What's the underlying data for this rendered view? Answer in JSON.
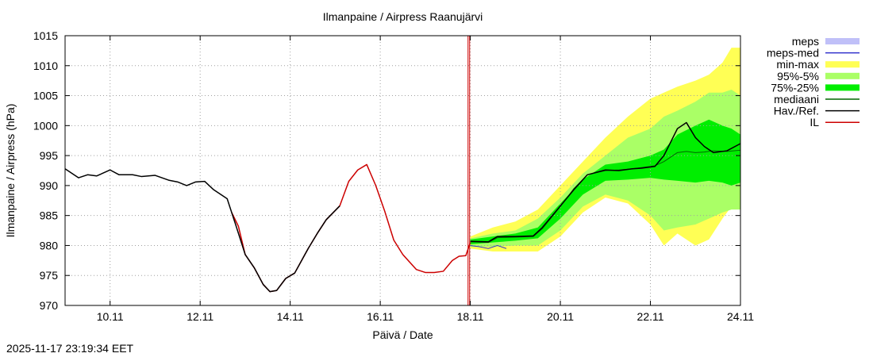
{
  "chart_data": {
    "type": "line",
    "title": "Ilmanpaine / Airpress Raanujärvi",
    "xlabel": "Päivä / Date",
    "ylabel": "Ilmanpaine / Airpress (hPa)",
    "x_unit": "days since 09.11 00:00",
    "xlim": [
      0.0,
      15.0
    ],
    "ylim": [
      970,
      1015
    ],
    "yticks": [
      970,
      975,
      980,
      985,
      990,
      995,
      1000,
      1005,
      1010,
      1015
    ],
    "xticks": [
      {
        "x": 1,
        "label": "10.11"
      },
      {
        "x": 3,
        "label": "12.11"
      },
      {
        "x": 5,
        "label": "14.11"
      },
      {
        "x": 7,
        "label": "16.11"
      },
      {
        "x": 9,
        "label": "18.11"
      },
      {
        "x": 11,
        "label": "20.11"
      },
      {
        "x": 13,
        "label": "22.11"
      },
      {
        "x": 15,
        "label": "24.11"
      }
    ],
    "forecast_start_x": 8.95,
    "legend": [
      {
        "key": "meps",
        "label": "meps",
        "color": "#c0c0f8",
        "style": "band"
      },
      {
        "key": "meps_med",
        "label": "meps-med",
        "color": "#3333cc",
        "style": "line"
      },
      {
        "key": "minmax",
        "label": "min-max",
        "color": "#ffff55",
        "style": "band"
      },
      {
        "key": "p95_5",
        "label": "95%-5%",
        "color": "#aaff66",
        "style": "band"
      },
      {
        "key": "p75_25",
        "label": "75%-25%",
        "color": "#00ee00",
        "style": "band"
      },
      {
        "key": "median",
        "label": "mediaani",
        "color": "#006600",
        "style": "line"
      },
      {
        "key": "observed",
        "label": "Hav./Ref.",
        "color": "#000000",
        "style": "line"
      },
      {
        "key": "il",
        "label": "IL",
        "color": "#cc0000",
        "style": "line"
      }
    ],
    "series": {
      "observed": {
        "name": "Hav./Ref.",
        "x": [
          0.0,
          0.3,
          0.5,
          0.7,
          1.0,
          1.2,
          1.5,
          1.7,
          2.0,
          2.3,
          2.5,
          2.7,
          2.9,
          3.1,
          3.3,
          3.6,
          3.8,
          4.0,
          4.2,
          4.4,
          4.55,
          4.7,
          4.9,
          5.1,
          5.4,
          5.6,
          5.8,
          6.1
        ],
        "y": [
          992.8,
          991.3,
          991.8,
          991.6,
          992.6,
          991.8,
          991.8,
          991.5,
          991.7,
          990.9,
          990.6,
          990.0,
          990.6,
          990.7,
          989.3,
          987.8,
          983.2,
          978.5,
          976.3,
          973.5,
          972.3,
          972.5,
          974.5,
          975.4,
          979.5,
          982.0,
          984.3,
          986.6
        ]
      },
      "il": {
        "name": "IL",
        "x": [
          3.7,
          3.85,
          4.0,
          4.2,
          4.4,
          4.55,
          4.7,
          4.9,
          5.1,
          5.4,
          5.6,
          5.8,
          6.1,
          6.3,
          6.5,
          6.7,
          6.9,
          7.1,
          7.3,
          7.5,
          7.8,
          8.0,
          8.2,
          8.4,
          8.6,
          8.75,
          8.9,
          9.0
        ],
        "y": [
          985.5,
          983.2,
          978.5,
          976.3,
          973.5,
          972.3,
          972.5,
          974.5,
          975.4,
          979.5,
          982.0,
          984.3,
          986.6,
          990.7,
          992.6,
          993.5,
          990.0,
          985.7,
          980.9,
          978.5,
          976.0,
          975.5,
          975.5,
          975.7,
          977.5,
          978.2,
          978.3,
          980.5
        ]
      },
      "hav_forecast": {
        "name": "Hav./Ref.",
        "x": [
          9.0,
          9.4,
          9.6,
          10.0,
          10.4,
          10.6,
          11.0,
          11.3,
          11.6,
          12.0,
          12.3,
          12.6,
          12.8,
          13.1,
          13.3,
          13.6,
          13.8,
          14.0,
          14.2,
          14.4,
          14.7,
          15.0
        ],
        "y": [
          980.7,
          980.6,
          981.5,
          981.5,
          981.6,
          983.0,
          986.6,
          989.3,
          991.8,
          992.6,
          992.5,
          992.8,
          992.9,
          993.2,
          995.0,
          999.5,
          1000.5,
          998.0,
          996.5,
          995.5,
          995.8,
          997.0
        ]
      },
      "median": {
        "name": "mediaani",
        "x": [
          9.0,
          9.4,
          9.6,
          10.0,
          10.4,
          10.6,
          11.0,
          11.3,
          11.6,
          12.0,
          12.3,
          12.6,
          12.8,
          13.1,
          13.3,
          13.6,
          13.8,
          14.0,
          14.2,
          14.4,
          14.7,
          15.0
        ],
        "y": [
          980.6,
          980.5,
          981.3,
          981.4,
          981.5,
          982.8,
          986.5,
          989.5,
          991.8,
          992.5,
          992.6,
          992.8,
          993.0,
          993.3,
          994.0,
          995.5,
          995.7,
          995.5,
          995.6,
          995.8,
          995.7,
          995.9
        ]
      },
      "meps_med": {
        "name": "meps-med",
        "x": [
          9.0,
          9.2,
          9.4,
          9.6,
          9.8
        ],
        "y": [
          980.0,
          979.8,
          979.5,
          980.0,
          979.5
        ]
      },
      "band_minmax": {
        "name": "min-max",
        "x": [
          9.0,
          9.5,
          10.0,
          10.5,
          11.0,
          11.5,
          12.0,
          12.5,
          13.0,
          13.3,
          13.6,
          14.0,
          14.3,
          14.6,
          14.8,
          15.0
        ],
        "lo": [
          979.5,
          979.0,
          979.0,
          979.0,
          981.5,
          985.5,
          988.0,
          987.0,
          983.5,
          980.0,
          982.0,
          980.0,
          981.0,
          984.5,
          986.5,
          987.0
        ],
        "hi": [
          981.5,
          983.0,
          984.0,
          986.0,
          990.0,
          994.0,
          998.0,
          1001.5,
          1004.5,
          1005.5,
          1006.5,
          1007.5,
          1008.5,
          1010.5,
          1013.0,
          1013.0
        ]
      },
      "band_p95_5": {
        "name": "95%-5%",
        "x": [
          9.0,
          9.5,
          10.0,
          10.5,
          11.0,
          11.5,
          12.0,
          12.5,
          13.0,
          13.3,
          13.6,
          14.0,
          14.3,
          14.6,
          14.8,
          15.0
        ],
        "lo": [
          979.8,
          979.8,
          980.0,
          980.0,
          982.5,
          986.5,
          988.5,
          987.5,
          985.0,
          982.5,
          983.0,
          983.5,
          984.5,
          985.5,
          986.0,
          986.0
        ],
        "hi": [
          981.2,
          982.0,
          982.5,
          984.5,
          988.0,
          992.0,
          995.0,
          998.0,
          999.5,
          1001.5,
          1002.5,
          1004.0,
          1005.5,
          1005.5,
          1006.0,
          1005.0
        ]
      },
      "band_p75_25": {
        "name": "75%-25%",
        "x": [
          9.0,
          9.5,
          10.0,
          10.5,
          11.0,
          11.5,
          12.0,
          12.5,
          13.0,
          13.3,
          13.6,
          14.0,
          14.3,
          14.6,
          14.8,
          15.0
        ],
        "lo": [
          980.2,
          980.5,
          980.8,
          981.2,
          984.5,
          988.5,
          990.8,
          991.0,
          991.3,
          991.0,
          990.8,
          990.5,
          990.8,
          990.5,
          990.0,
          990.5
        ],
        "hi": [
          981.0,
          981.5,
          982.0,
          983.0,
          987.0,
          991.0,
          993.5,
          994.0,
          995.0,
          996.0,
          998.5,
          1000.0,
          1001.0,
          1000.0,
          999.5,
          998.5
        ]
      }
    }
  },
  "timestamp": "2025-11-17 23:19:34 EET"
}
